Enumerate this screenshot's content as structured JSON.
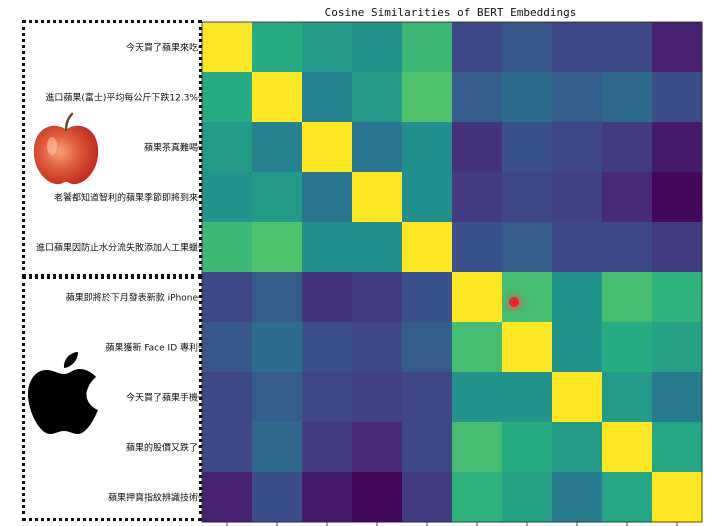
{
  "chart_data": {
    "type": "heatmap",
    "title": "Cosine Similarities of BERT Embeddings",
    "row_labels": [
      "今天買了蘋果來吃",
      "進口蘋果(富士)平均每公斤下跌12.3%",
      "蘋果茶真難喝",
      "老饕都知道智利的蘋果季節即將到來",
      "進口蘋果因防止水分流失敗添加人工果蠟",
      "蘋果即將於下月發表新款 iPhone",
      "蘋果獲新 Face ID 專利",
      "今天買了蘋果手機",
      "蘋果的股價又跌了",
      "蘋果押寶指紋辨識技術"
    ],
    "column_labels": [],
    "matrix": [
      [
        1.0,
        0.62,
        0.55,
        0.52,
        0.68,
        0.22,
        0.28,
        0.22,
        0.22,
        0.1
      ],
      [
        0.62,
        1.0,
        0.45,
        0.55,
        0.72,
        0.3,
        0.36,
        0.3,
        0.35,
        0.24
      ],
      [
        0.55,
        0.45,
        1.0,
        0.4,
        0.5,
        0.15,
        0.25,
        0.22,
        0.18,
        0.08
      ],
      [
        0.52,
        0.55,
        0.4,
        1.0,
        0.5,
        0.18,
        0.22,
        0.2,
        0.12,
        0.02
      ],
      [
        0.68,
        0.72,
        0.5,
        0.5,
        1.0,
        0.25,
        0.3,
        0.22,
        0.22,
        0.18
      ],
      [
        0.22,
        0.3,
        0.15,
        0.18,
        0.25,
        1.0,
        0.7,
        0.52,
        0.7,
        0.65
      ],
      [
        0.28,
        0.36,
        0.25,
        0.22,
        0.3,
        0.7,
        1.0,
        0.52,
        0.62,
        0.58
      ],
      [
        0.22,
        0.3,
        0.22,
        0.2,
        0.22,
        0.52,
        0.52,
        1.0,
        0.55,
        0.42
      ],
      [
        0.22,
        0.35,
        0.18,
        0.12,
        0.22,
        0.7,
        0.62,
        0.55,
        1.0,
        0.6
      ],
      [
        0.1,
        0.24,
        0.08,
        0.02,
        0.18,
        0.65,
        0.58,
        0.42,
        0.6,
        1.0
      ]
    ],
    "colormap": "viridis",
    "vmin": 0.0,
    "vmax": 1.0,
    "legend": "none",
    "grid": false
  },
  "annotations": {
    "group_1_icon": "apple-fruit-icon",
    "group_2_icon": "apple-logo-icon"
  },
  "colors": {
    "box_border": "#111111",
    "cursor": "#e8262a"
  }
}
